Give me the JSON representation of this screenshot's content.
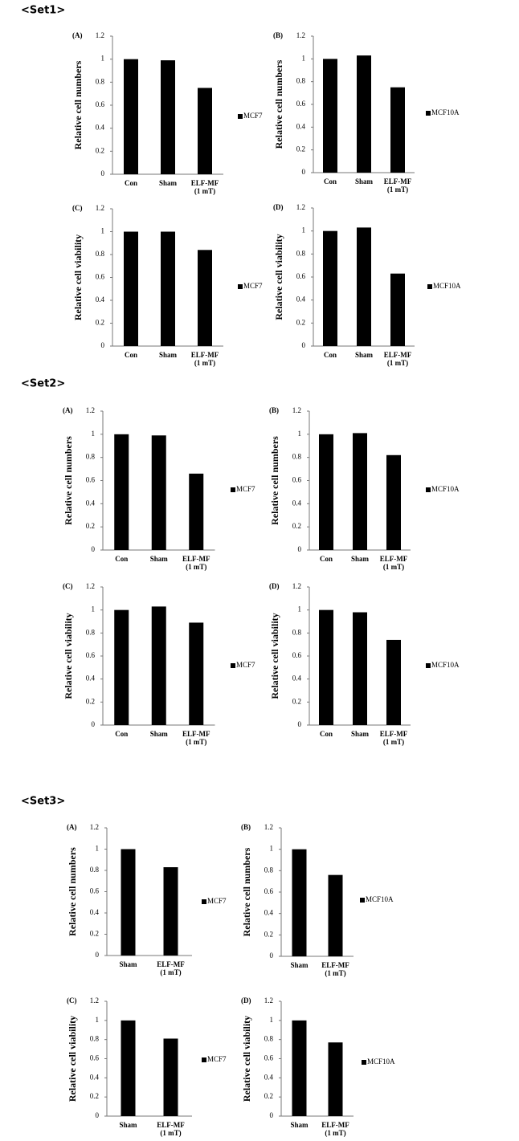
{
  "sets": [
    "<Set1>",
    "<Set2>",
    "<Set3>"
  ],
  "chart_data": [
    {
      "type": "bar",
      "panel": "(A)",
      "ylabel": "Relative cell numbers",
      "categories": [
        "Con",
        "Sham",
        "ELF-MF\n(1 mT)"
      ],
      "series": [
        {
          "name": "MCF7",
          "color": "#000000",
          "values": [
            1,
            0.99,
            0.75
          ]
        }
      ],
      "ylim": [
        0,
        1.2
      ],
      "yticks": [
        0,
        0.2,
        0.4,
        0.6,
        0.8,
        1,
        1.2
      ]
    },
    {
      "type": "bar",
      "panel": "(B)",
      "ylabel": "Relative cell numbers",
      "categories": [
        "Con",
        "Sham",
        "ELF-MF\n(1 mT)"
      ],
      "series": [
        {
          "name": "MCF10A",
          "color": "#000000",
          "values": [
            1,
            1.03,
            0.75
          ]
        }
      ],
      "ylim": [
        0,
        1.2
      ],
      "yticks": [
        0,
        0.2,
        0.4,
        0.6,
        0.8,
        1,
        1.2
      ]
    },
    {
      "type": "bar",
      "panel": "(C)",
      "ylabel": "Relative cell viability",
      "categories": [
        "Con",
        "Sham",
        "ELF-MF\n(1 mT)"
      ],
      "series": [
        {
          "name": "MCF7",
          "color": "#000000",
          "values": [
            1,
            1,
            0.84
          ]
        }
      ],
      "ylim": [
        0,
        1.2
      ],
      "yticks": [
        0,
        0.2,
        0.4,
        0.6,
        0.8,
        1,
        1.2
      ]
    },
    {
      "type": "bar",
      "panel": "(D)",
      "ylabel": "Relative cell viability",
      "categories": [
        "Con",
        "Sham",
        "ELF-MF\n(1 mT)"
      ],
      "series": [
        {
          "name": "MCF10A",
          "color": "#000000",
          "values": [
            1,
            1.03,
            0.63
          ]
        }
      ],
      "ylim": [
        0,
        1.2
      ],
      "yticks": [
        0,
        0.2,
        0.4,
        0.6,
        0.8,
        1,
        1.2
      ]
    },
    {
      "type": "bar",
      "panel": "(A)",
      "ylabel": "Relative cell numbers",
      "categories": [
        "Con",
        "Sham",
        "ELF-MF\n(1 mT)"
      ],
      "series": [
        {
          "name": "MCF7",
          "color": "#000000",
          "values": [
            1,
            0.99,
            0.66
          ]
        }
      ],
      "ylim": [
        0,
        1.2
      ],
      "yticks": [
        0,
        0.2,
        0.4,
        0.6,
        0.8,
        1,
        1.2
      ]
    },
    {
      "type": "bar",
      "panel": "(B)",
      "ylabel": "Relative cell numbers",
      "categories": [
        "Con",
        "Sham",
        "ELF-MF\n(1 mT)"
      ],
      "series": [
        {
          "name": "MCF10A",
          "color": "#000000",
          "values": [
            1,
            1.01,
            0.82
          ]
        }
      ],
      "ylim": [
        0,
        1.2
      ],
      "yticks": [
        0,
        0.2,
        0.4,
        0.6,
        0.8,
        1,
        1.2
      ]
    },
    {
      "type": "bar",
      "panel": "(C)",
      "ylabel": "Relative cell viability",
      "categories": [
        "Con",
        "Sham",
        "ELF-MF\n(1 mT)"
      ],
      "series": [
        {
          "name": "MCF7",
          "color": "#000000",
          "values": [
            1,
            1.03,
            0.89
          ]
        }
      ],
      "ylim": [
        0,
        1.2
      ],
      "yticks": [
        0,
        0.2,
        0.4,
        0.6,
        0.8,
        1,
        1.2
      ]
    },
    {
      "type": "bar",
      "panel": "(D)",
      "ylabel": "Relative cell viability",
      "categories": [
        "Con",
        "Sham",
        "ELF-MF\n(1 mT)"
      ],
      "series": [
        {
          "name": "MCF10A",
          "color": "#000000",
          "values": [
            1,
            0.98,
            0.74
          ]
        }
      ],
      "ylim": [
        0,
        1.2
      ],
      "yticks": [
        0,
        0.2,
        0.4,
        0.6,
        0.8,
        1,
        1.2
      ]
    },
    {
      "type": "bar",
      "panel": "(A)",
      "ylabel": "Relative cell numbers",
      "categories": [
        "Sham",
        "ELF-MF\n(1 mT)"
      ],
      "series": [
        {
          "name": "MCF7",
          "color": "#000000",
          "values": [
            1,
            0.83
          ]
        }
      ],
      "ylim": [
        0,
        1.2
      ],
      "yticks": [
        0,
        0.2,
        0.4,
        0.6,
        0.8,
        1,
        1.2
      ]
    },
    {
      "type": "bar",
      "panel": "(B)",
      "ylabel": "Relative cell numbers",
      "categories": [
        "Sham",
        "ELF-MF\n(1 mT)"
      ],
      "series": [
        {
          "name": "MCF10A",
          "color": "#000000",
          "values": [
            1,
            0.76
          ]
        }
      ],
      "ylim": [
        0,
        1.2
      ],
      "yticks": [
        0,
        0.2,
        0.4,
        0.6,
        0.8,
        1,
        1.2
      ]
    },
    {
      "type": "bar",
      "panel": "(C)",
      "ylabel": "Relative cell viability",
      "categories": [
        "Sham",
        "ELF-MF\n(1 mT)"
      ],
      "series": [
        {
          "name": "MCF7",
          "color": "#000000",
          "values": [
            1,
            0.81
          ]
        }
      ],
      "ylim": [
        0,
        1.2
      ],
      "yticks": [
        0,
        0.2,
        0.4,
        0.6,
        0.8,
        1,
        1.2
      ]
    },
    {
      "type": "bar",
      "panel": "(D)",
      "ylabel": "Relative cell viability",
      "categories": [
        "Sham",
        "ELF-MF\n(1 mT)"
      ],
      "series": [
        {
          "name": "MCF10A",
          "color": "#000000",
          "values": [
            1,
            0.77
          ]
        }
      ],
      "ylim": [
        0,
        1.2
      ],
      "yticks": [
        0,
        0.2,
        0.4,
        0.6,
        0.8,
        1,
        1.2
      ]
    }
  ]
}
